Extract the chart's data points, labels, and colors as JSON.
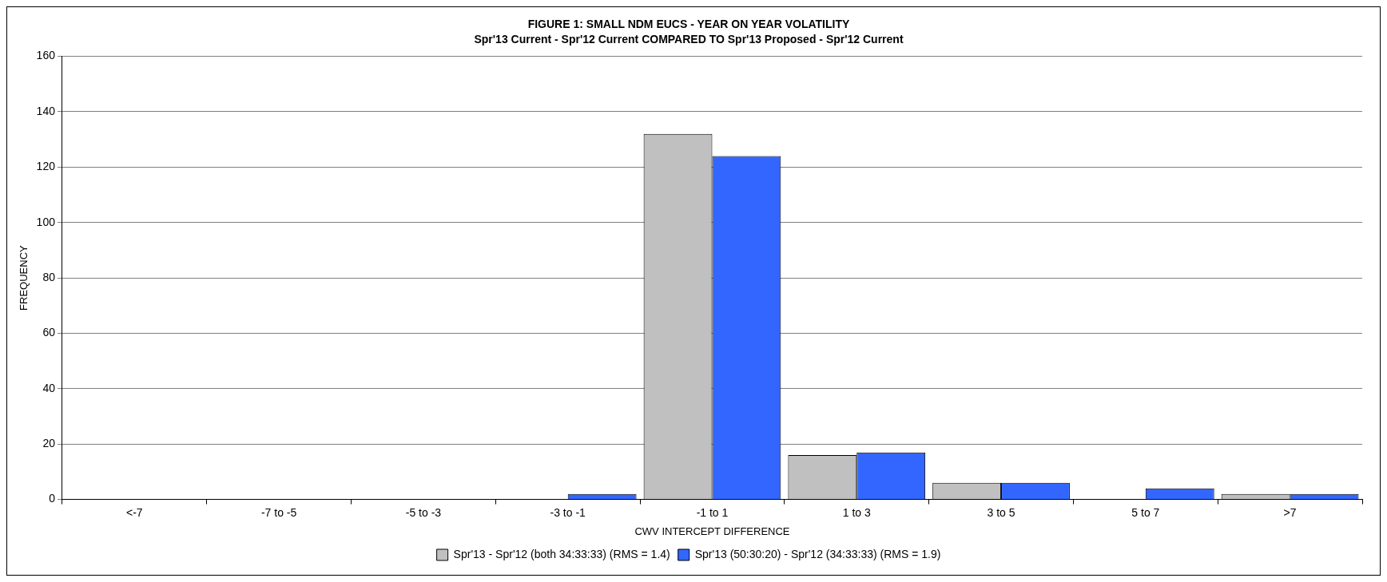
{
  "chart_data": {
    "type": "bar",
    "title": "FIGURE 1: SMALL NDM EUCS - YEAR ON YEAR VOLATILITY",
    "subtitle": "Spr'13 Current - Spr'12 Current COMPARED TO Spr'13 Proposed - Spr'12 Current",
    "xlabel": "CWV INTERCEPT DIFFERENCE",
    "ylabel": "FREQUENCY",
    "categories": [
      "<-7",
      "-7 to -5",
      "-5 to -3",
      "-3 to -1",
      "-1 to 1",
      "1 to 3",
      "3 to 5",
      "5 to 7",
      ">7"
    ],
    "series": [
      {
        "name": "Spr'13 - Spr'12 (both 34:33:33) (RMS = 1.4)",
        "color": "#c0c0c0",
        "values": [
          0,
          0,
          0,
          0,
          132,
          16,
          6,
          0,
          2
        ]
      },
      {
        "name": "Spr'13 (50:30:20) - Spr'12 (34:33:33) (RMS = 1.9)",
        "color": "#3366ff",
        "values": [
          0,
          0,
          0,
          2,
          124,
          17,
          6,
          4,
          2
        ]
      }
    ],
    "ylim": [
      0,
      160
    ],
    "yticks": [
      0,
      20,
      40,
      60,
      80,
      100,
      120,
      140,
      160
    ],
    "grid": "y",
    "legend": "bottom"
  }
}
